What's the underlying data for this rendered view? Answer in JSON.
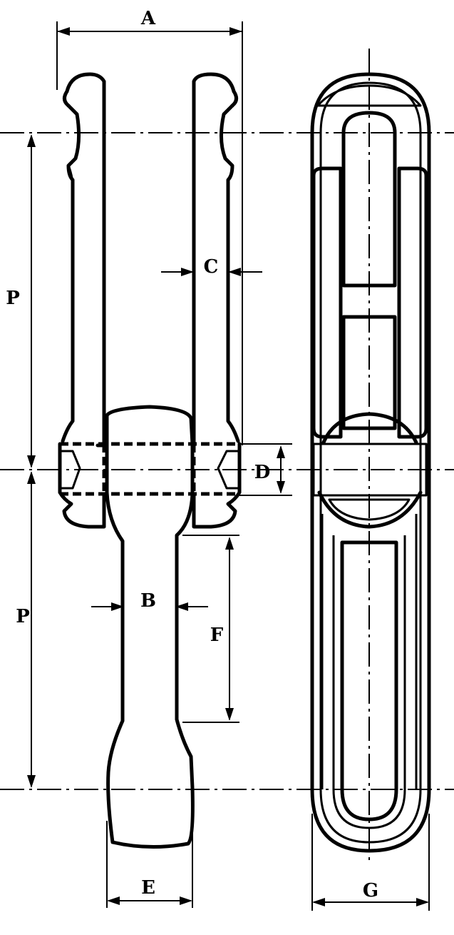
{
  "labels": {
    "A": "A",
    "B": "B",
    "C": "C",
    "D": "D",
    "E": "E",
    "F": "F",
    "G": "G",
    "P_upper": "P",
    "P_lower": "P"
  },
  "colors": {
    "ink": "#000000",
    "paper": "#ffffff"
  }
}
